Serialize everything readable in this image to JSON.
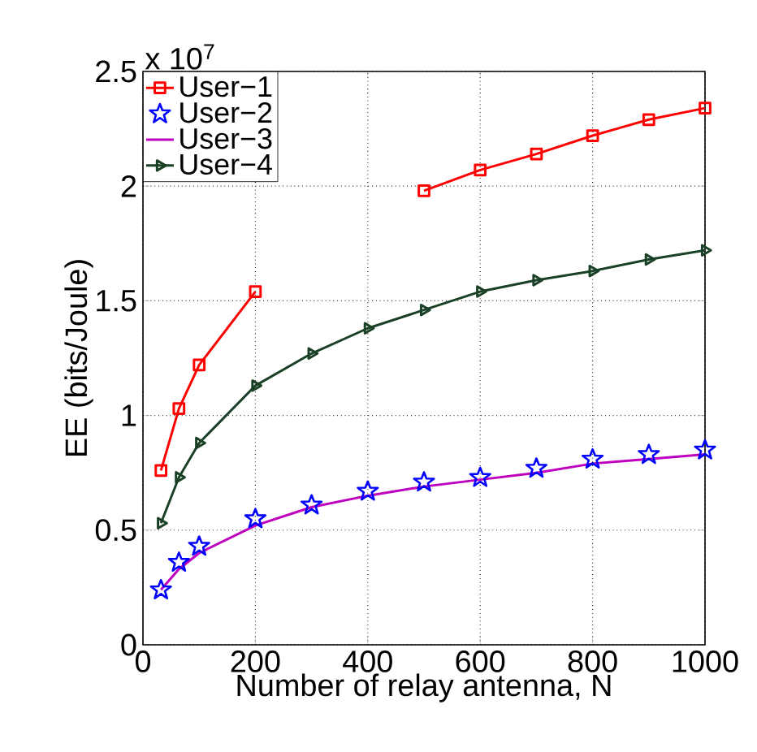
{
  "chart_data": {
    "type": "line",
    "xlabel": "Number of relay antenna, N",
    "ylabel": "EE (bits/Joule)",
    "annotations": [
      "x 10$^{7}$"
    ],
    "x": [
      32,
      64,
      100,
      200,
      300,
      400,
      500,
      600,
      700,
      800,
      900,
      1000
    ],
    "series": [
      {
        "name": "User−1",
        "color": "#ff0000",
        "marker": "square",
        "values": [
          0.76,
          1.03,
          1.22,
          1.54,
          null,
          null,
          1.98,
          2.07,
          2.14,
          2.22,
          2.29,
          2.34
        ]
      },
      {
        "name": "User−2",
        "color": "#0000ff",
        "type": "scatter",
        "marker": "star",
        "values": [
          0.24,
          0.36,
          0.43,
          0.55,
          0.61,
          0.67,
          0.71,
          0.73,
          0.77,
          0.81,
          0.83,
          0.85
        ]
      },
      {
        "name": "User−3",
        "color": "#bf00bf",
        "marker": "none",
        "values": [
          0.24,
          0.33,
          0.4,
          0.52,
          0.6,
          0.65,
          0.69,
          0.72,
          0.75,
          0.79,
          0.81,
          0.83
        ]
      },
      {
        "name": "User−4",
        "color": "#1a4026",
        "marker": "triangle",
        "values": [
          0.53,
          0.73,
          0.88,
          1.13,
          1.27,
          1.38,
          1.46,
          1.54,
          1.59,
          1.63,
          1.68,
          1.72
        ]
      }
    ],
    "xlim": [
      0,
      1000
    ],
    "ylim": [
      0,
      2.5
    ],
    "xticks": [
      0,
      200,
      400,
      600,
      800,
      1000
    ],
    "yticks": [
      0,
      0.5,
      1,
      1.5,
      2,
      2.5
    ],
    "grid": true,
    "legend": "top left"
  }
}
